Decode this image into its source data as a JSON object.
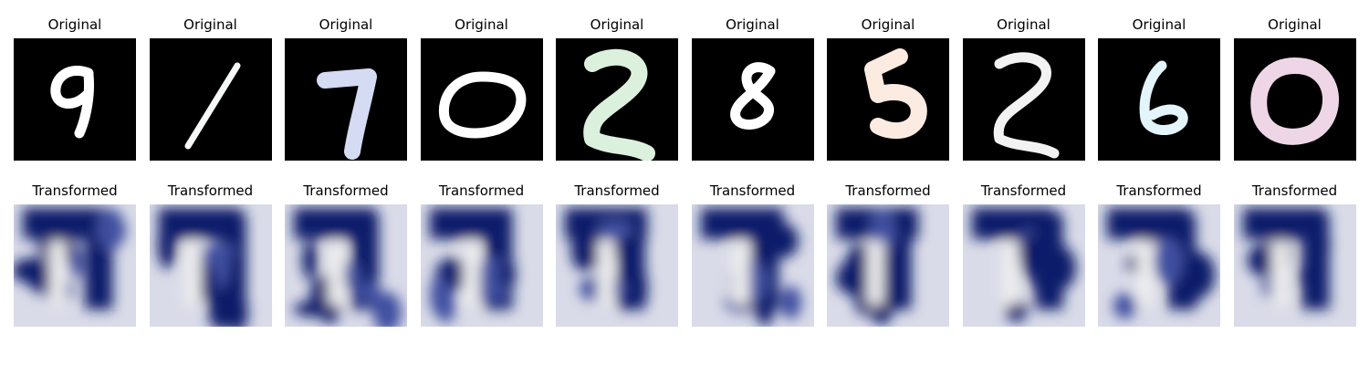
{
  "rows": {
    "original": {
      "title": "Original",
      "items": [
        {
          "digit": "9",
          "stroke_color": "#ffffff"
        },
        {
          "digit": "1",
          "stroke_color": "#f4f8f6"
        },
        {
          "digit": "7",
          "stroke_color": "#d4dbf2"
        },
        {
          "digit": "0",
          "stroke_color": "#ffffff"
        },
        {
          "digit": "2",
          "stroke_color": "#dcf1dd"
        },
        {
          "digit": "8",
          "stroke_color": "#ffffff"
        },
        {
          "digit": "5",
          "stroke_color": "#fcebe1"
        },
        {
          "digit": "2",
          "stroke_color": "#f2f2f2"
        },
        {
          "digit": "6",
          "stroke_color": "#e3f4fa"
        },
        {
          "digit": "0",
          "stroke_color": "#efd6e7"
        }
      ]
    },
    "transformed": {
      "title": "Transformed",
      "count": 10
    }
  },
  "colors": {
    "background": "#000000",
    "dark_blue": "#101a6a",
    "mid_blue": "#3f4fa0",
    "light": "#eeeeee"
  }
}
